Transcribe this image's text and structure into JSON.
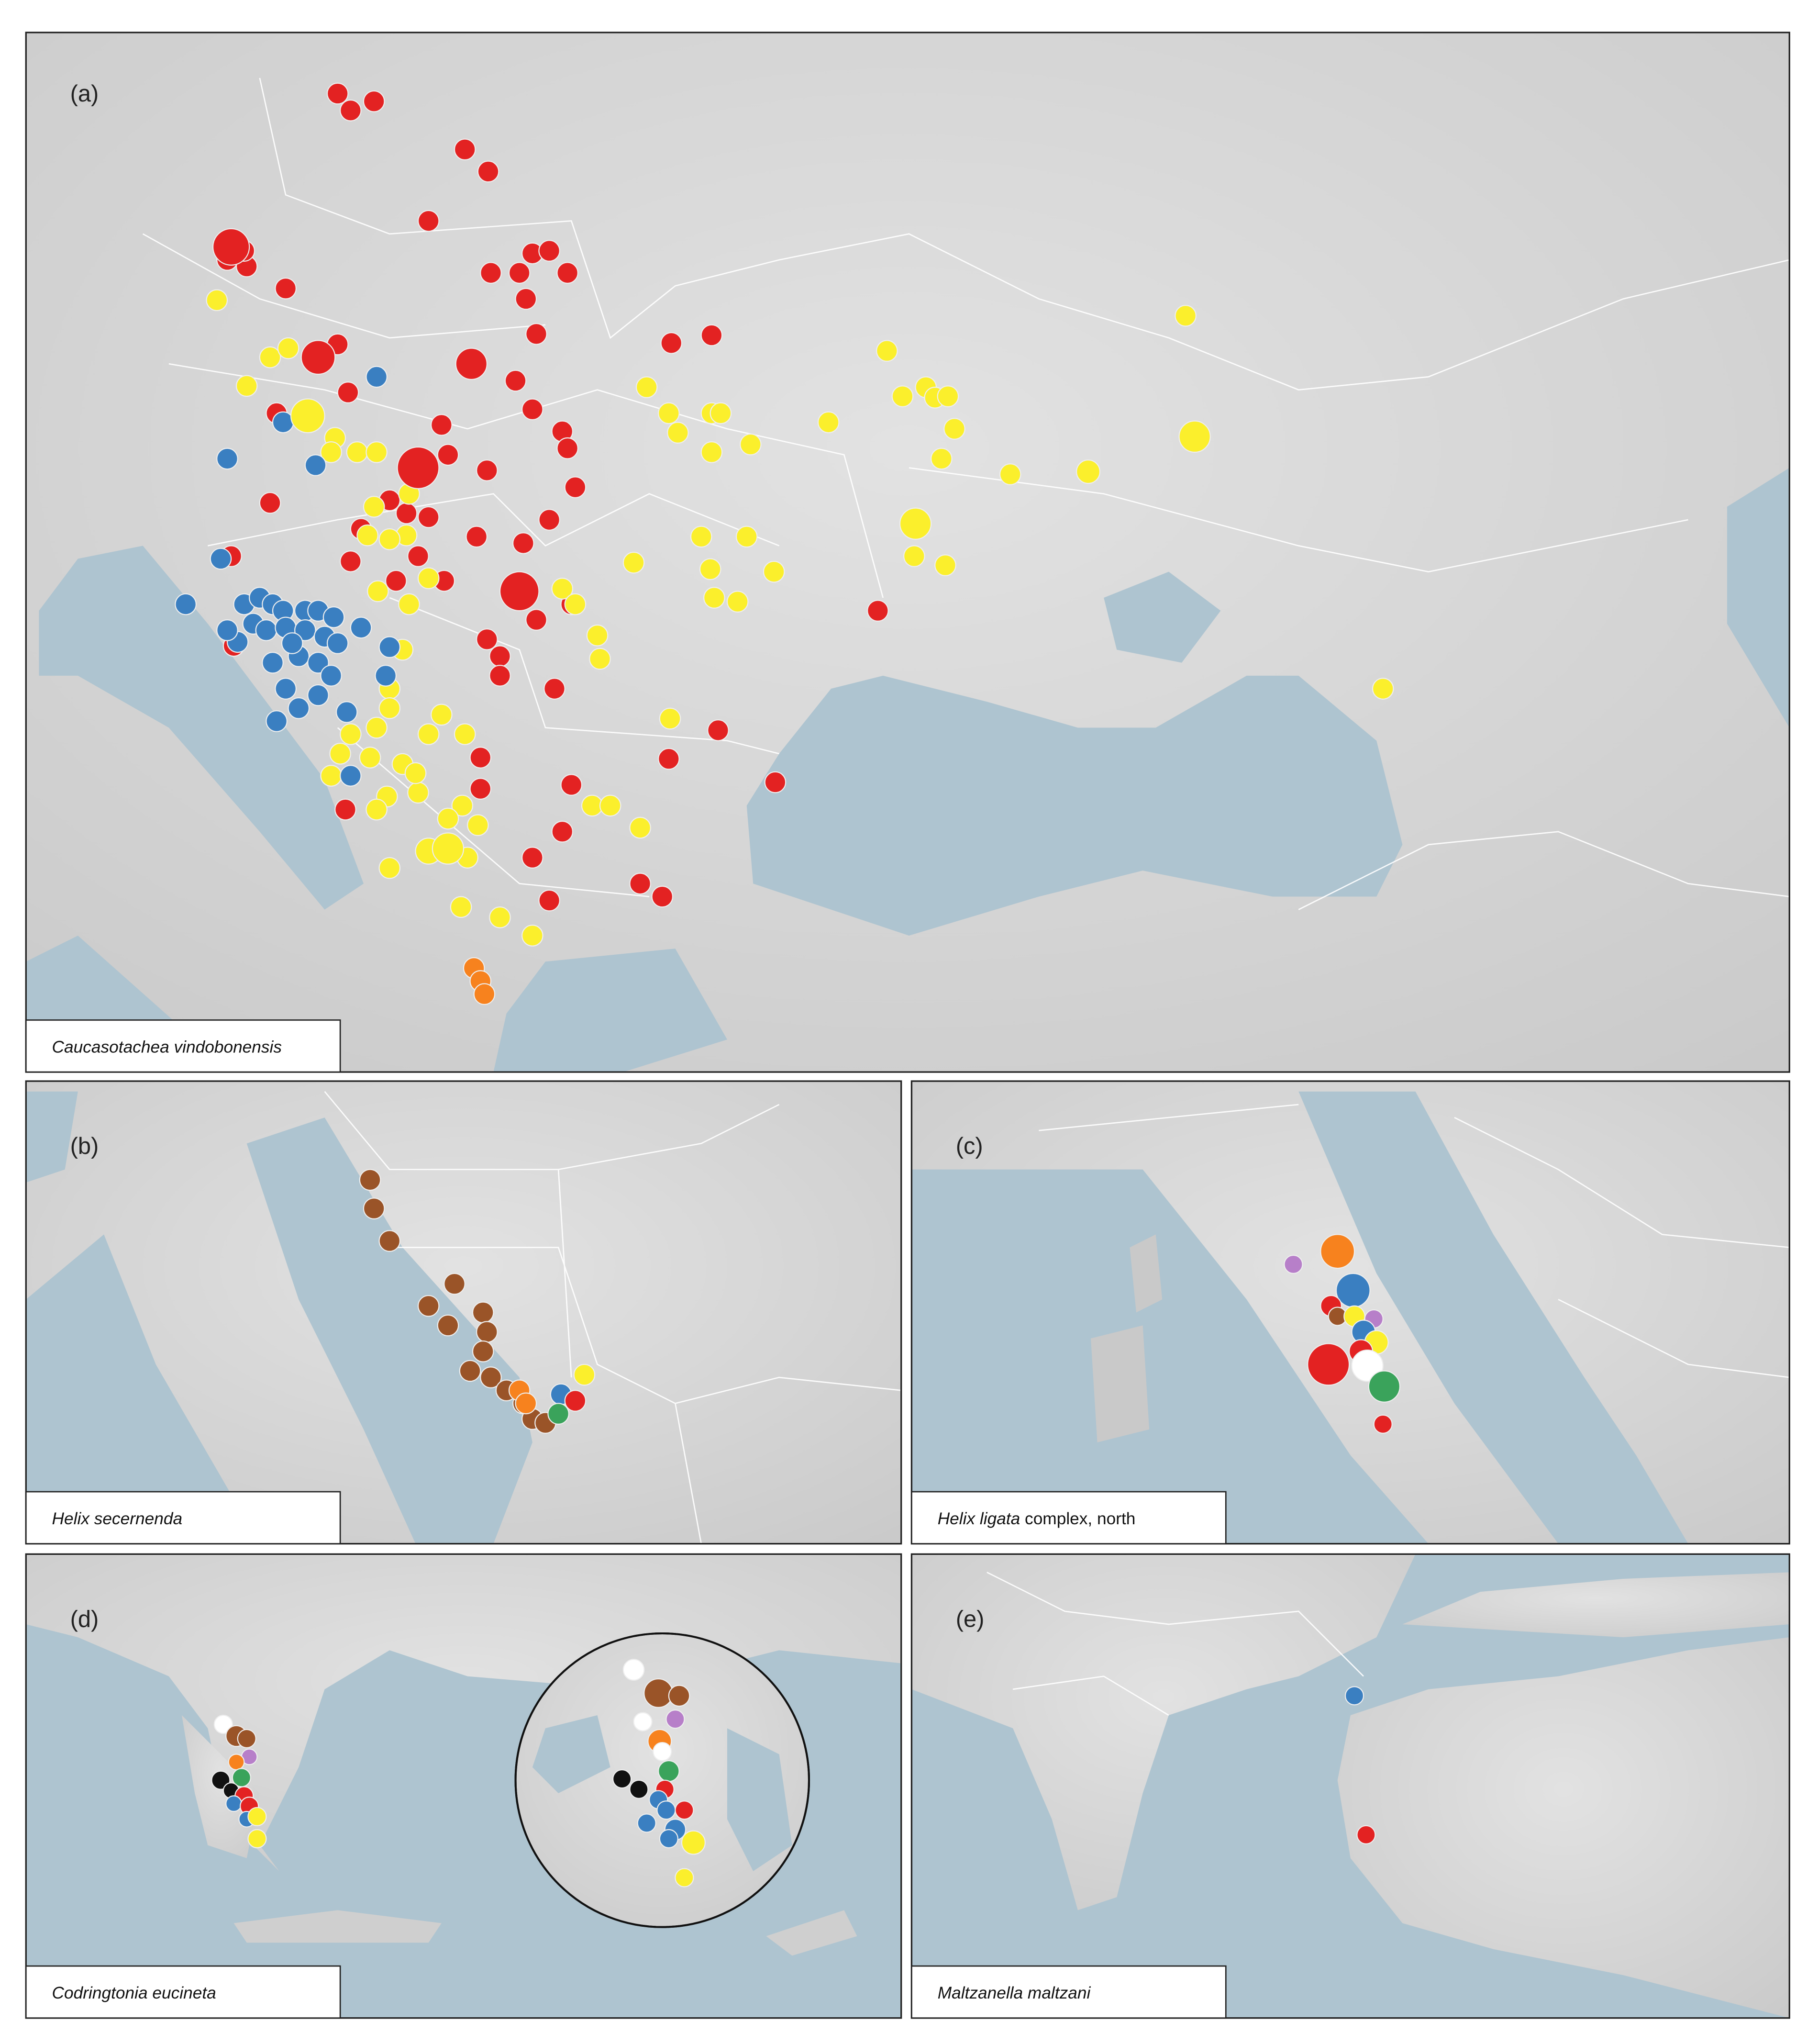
{
  "panels": [
    {
      "label": "(a)",
      "species": "Caucasotachea vindobonensis"
    },
    {
      "label": "(b)",
      "species": "Helix secernenda"
    },
    {
      "label": "(c)",
      "species": "Helix ligata",
      "species_suffix": " complex, north"
    },
    {
      "label": "(d)",
      "species": "Codringtonia eucineta"
    },
    {
      "label": "(e)",
      "species": "Maltzanella maltzani"
    }
  ]
}
